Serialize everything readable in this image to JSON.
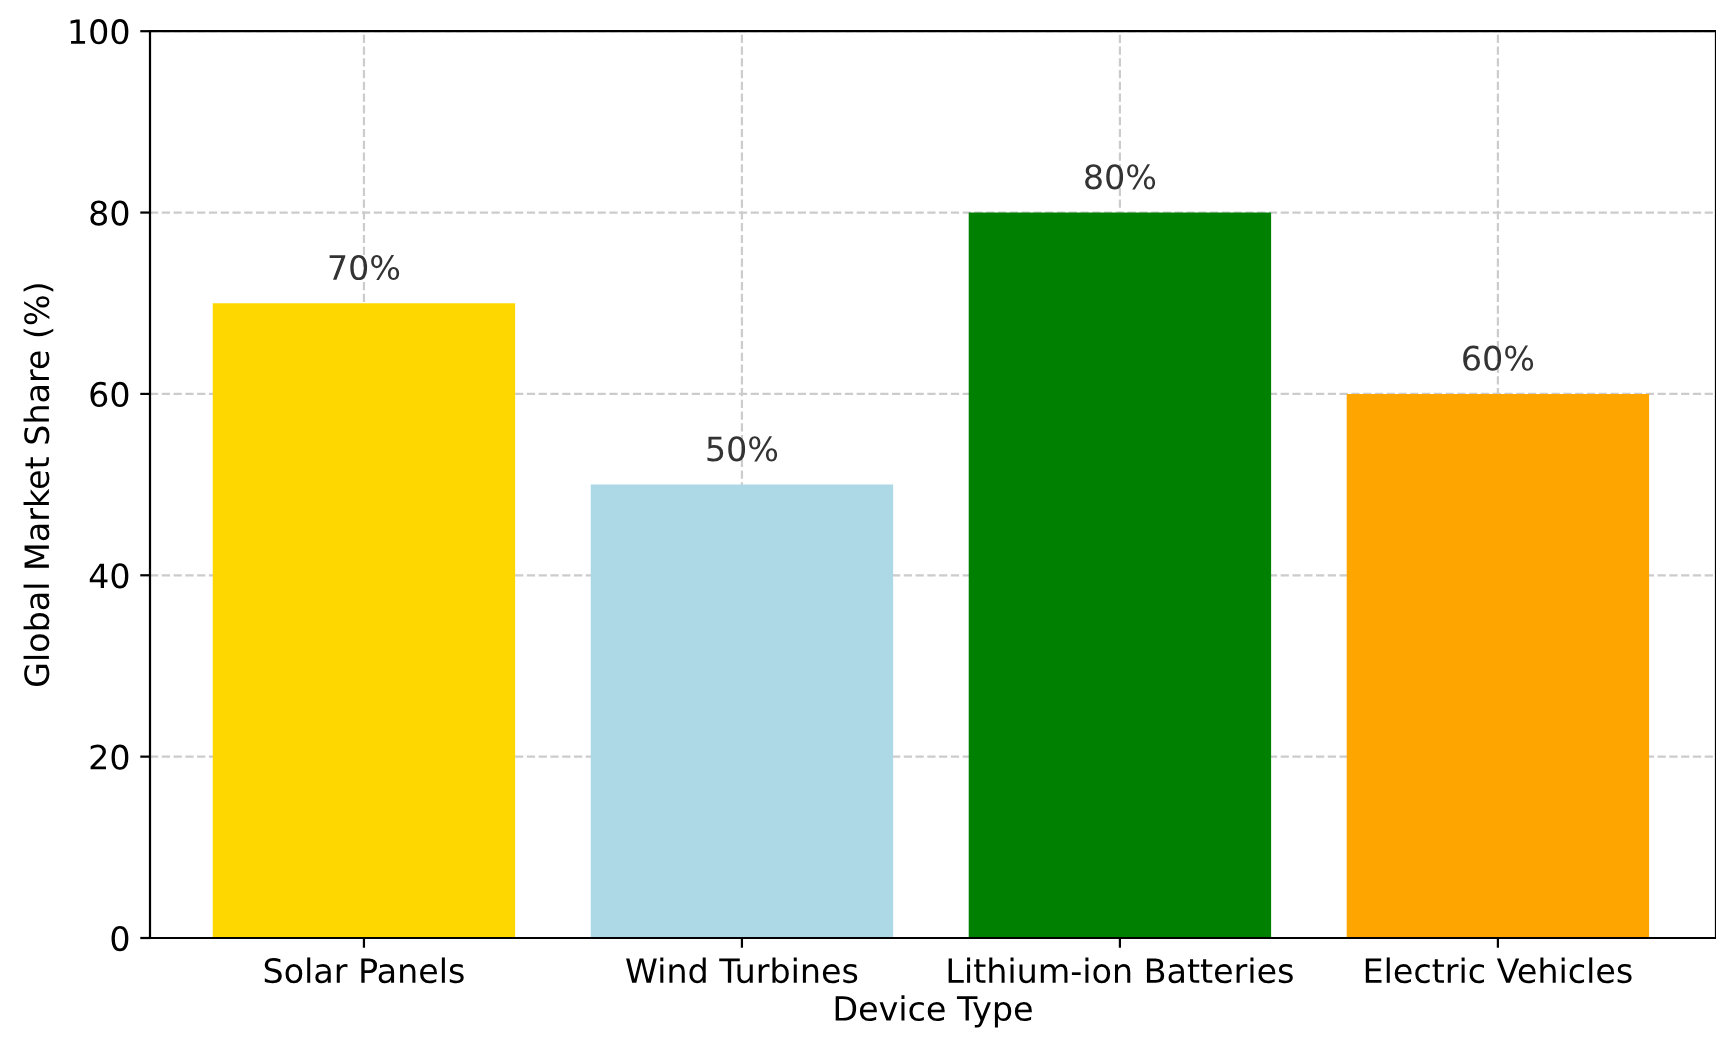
{
  "chart_data": {
    "type": "bar",
    "xlabel": "Device Type",
    "ylabel": "Global Market Share (%)",
    "categories": [
      "Solar Panels",
      "Wind Turbines",
      "Lithium-ion Batteries",
      "Electric Vehicles"
    ],
    "values": [
      70,
      50,
      80,
      60
    ],
    "colors": [
      "#ffd700",
      "#add8e6",
      "#008000",
      "#ffa500"
    ],
    "value_labels": [
      "70%",
      "50%",
      "80%",
      "60%"
    ],
    "ylim": [
      0,
      100
    ],
    "yticks": [
      0,
      20,
      40,
      60,
      80,
      100
    ],
    "grid": true
  }
}
